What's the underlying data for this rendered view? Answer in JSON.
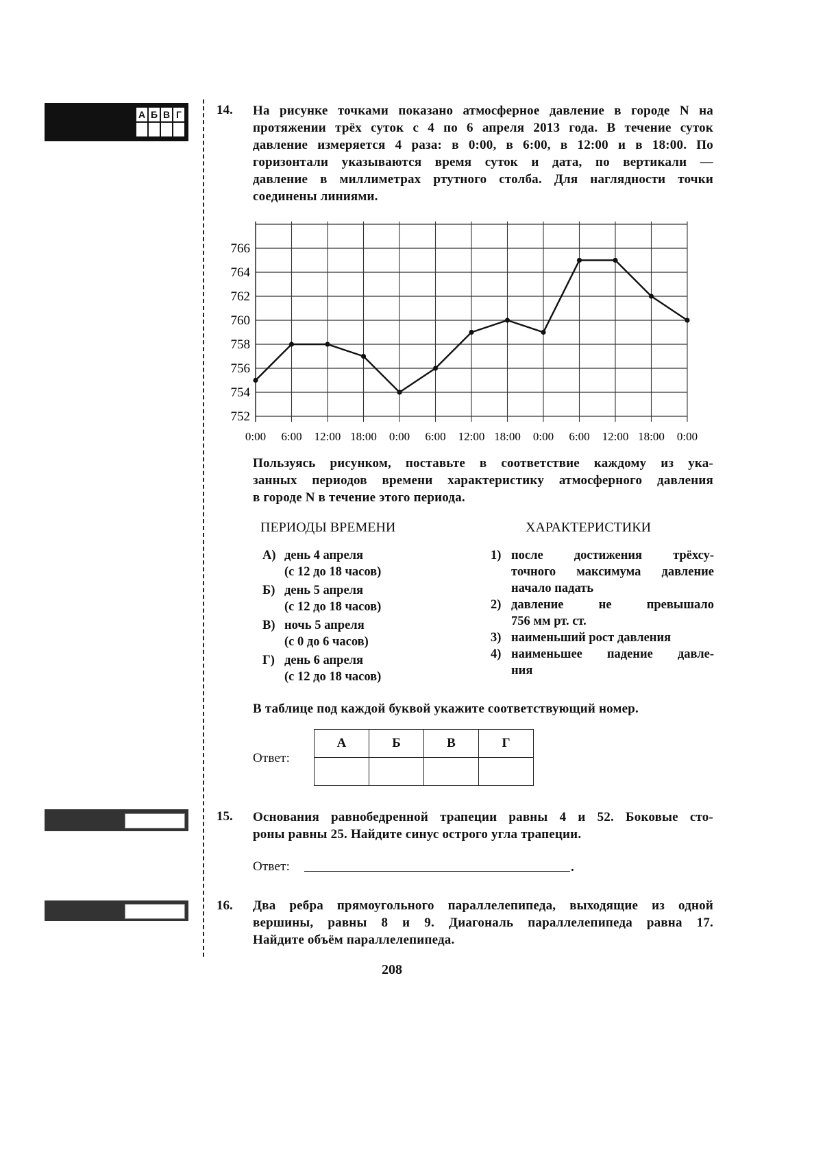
{
  "margin": {
    "q14_answer_letters": [
      "А",
      "Б",
      "В",
      "Г"
    ]
  },
  "q14": {
    "number": "14.",
    "text_lines": [
      "На рисунке точками показано атмосферное давление в городе N на",
      "протяжении трёх суток с 4 по 6 апреля 2013 года. В течение суток",
      "давление измеряется 4 раза: в 0:00, в 6:00, в 12:00 и в 18:00. По",
      "горизонтали указываются время суток и дата, по вертикали —",
      "давление в миллиметрах ртутного столба. Для наглядности точки",
      "соединены линиями."
    ],
    "after_chart_lines": [
      "Пользуясь рисунком, поставьте в соответствие каждому из ука-",
      "занных периодов времени характеристику атмосферного давления",
      "в городе N в течение этого периода."
    ],
    "periods_header": "ПЕРИОДЫ ВРЕМЕНИ",
    "characteristics_header": "ХАРАКТЕРИСТИКИ",
    "periods": [
      {
        "letter": "А)",
        "line1": "день 4 апреля",
        "line2": "(с 12 до 18 часов)"
      },
      {
        "letter": "Б)",
        "line1": "день 5 апреля",
        "line2": "(с 12 до 18 часов)"
      },
      {
        "letter": "В)",
        "line1": "ночь 5 апреля",
        "line2": "(с 0 до 6 часов)"
      },
      {
        "letter": "Г)",
        "line1": "день 6 апреля",
        "line2": "(с 12 до 18 часов)"
      }
    ],
    "characteristics": [
      {
        "num": "1)",
        "lines": [
          "после достижения трёхсу-",
          "точного максимума давление",
          "начало падать"
        ]
      },
      {
        "num": "2)",
        "lines": [
          "давление не превышало",
          "756 мм рт. ст."
        ]
      },
      {
        "num": "3)",
        "lines": [
          "наименьший рост давления"
        ]
      },
      {
        "num": "4)",
        "lines": [
          "наименьшее падение давле-",
          "ния"
        ]
      }
    ],
    "table_instruction": "В таблице под каждой буквой укажите соответствующий номер.",
    "answer_label": "Ответ:",
    "answer_table_headers": [
      "А",
      "Б",
      "В",
      "Г"
    ]
  },
  "chart_data": {
    "type": "line",
    "title": "",
    "xlabel": "",
    "ylabel": "",
    "x_tick_labels": [
      "0:00",
      "6:00",
      "12:00",
      "18:00",
      "0:00",
      "6:00",
      "12:00",
      "18:00",
      "0:00",
      "6:00",
      "12:00",
      "18:00",
      "0:00"
    ],
    "y_tick_labels": [
      "752",
      "754",
      "756",
      "758",
      "760",
      "762",
      "764",
      "766"
    ],
    "ylim": [
      752,
      768
    ],
    "grid": true,
    "series": [
      {
        "values": [
          755,
          758,
          758,
          757,
          754,
          756,
          759,
          760,
          759,
          765,
          765,
          762,
          760
        ]
      }
    ],
    "line_color": "#111111"
  },
  "q15": {
    "number": "15.",
    "text_lines": [
      "Основания равнобедренной трапеции равны 4 и 52. Боковые сто-",
      "роны равны 25. Найдите синус острого угла трапеции."
    ],
    "answer_label": "Ответ:"
  },
  "q16": {
    "number": "16.",
    "text_lines": [
      "Два ребра прямоугольного параллелепипеда, выходящие из одной",
      "вершины, равны 8 и 9. Диагональ параллелепипеда равна 17.",
      "Найдите объём параллелепипеда."
    ]
  },
  "page_number": "208"
}
